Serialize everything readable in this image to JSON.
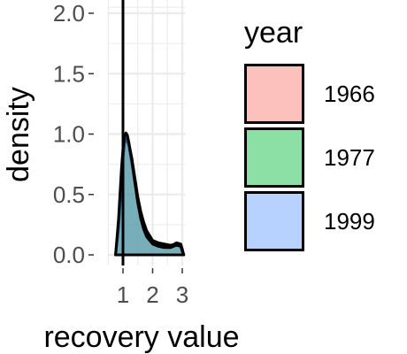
{
  "chart_data": {
    "type": "area",
    "subtype": "density",
    "title": "",
    "xlabel": "recovery value",
    "ylabel": "density",
    "xlim": [
      0.5,
      3.1
    ],
    "ylim": [
      0,
      2.05
    ],
    "x_ticks": [
      1,
      2,
      3
    ],
    "y_ticks": [
      0.0,
      0.5,
      1.0,
      1.5,
      2.0
    ],
    "y_tick_labels": [
      "0.0",
      "0.5",
      "1.0",
      "1.5",
      "2.0"
    ],
    "grid": true,
    "reference_line_x": 1,
    "legend_title": "year",
    "legend_position": "right",
    "x": [
      0.75,
      0.85,
      0.95,
      1.0,
      1.05,
      1.1,
      1.15,
      1.2,
      1.3,
      1.4,
      1.5,
      1.6,
      1.7,
      1.8,
      2.0,
      2.2,
      2.4,
      2.6,
      2.8,
      2.95,
      3.0,
      3.05
    ],
    "series": [
      {
        "name": "1966",
        "color": "#F8766D",
        "values": [
          0.0,
          0.25,
          0.65,
          0.82,
          0.93,
          0.97,
          0.96,
          0.92,
          0.8,
          0.64,
          0.48,
          0.36,
          0.27,
          0.2,
          0.12,
          0.1,
          0.09,
          0.08,
          0.09,
          0.08,
          0.04,
          0.0
        ]
      },
      {
        "name": "1977",
        "color": "#00BA38",
        "values": [
          0.0,
          0.22,
          0.62,
          0.8,
          0.92,
          0.96,
          0.95,
          0.9,
          0.76,
          0.6,
          0.45,
          0.33,
          0.24,
          0.17,
          0.1,
          0.08,
          0.07,
          0.07,
          0.1,
          0.09,
          0.05,
          0.0
        ]
      },
      {
        "name": "1999",
        "color": "#619CFF",
        "values": [
          0.0,
          0.3,
          0.72,
          0.88,
          0.98,
          1.01,
          0.99,
          0.93,
          0.78,
          0.6,
          0.43,
          0.3,
          0.21,
          0.15,
          0.09,
          0.07,
          0.06,
          0.06,
          0.08,
          0.07,
          0.03,
          0.0
        ]
      }
    ]
  }
}
